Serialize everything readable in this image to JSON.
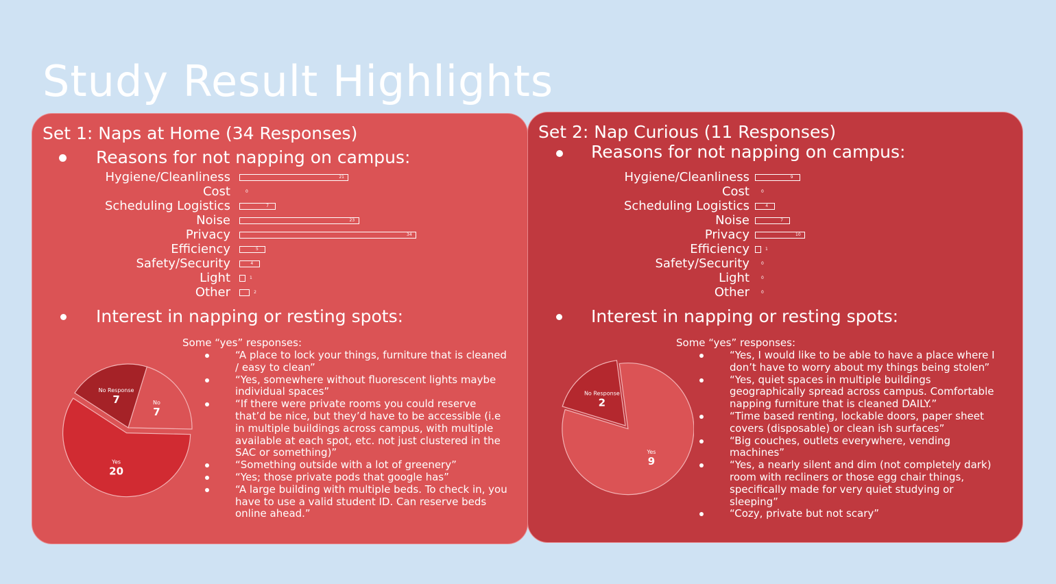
{
  "slide_title": "Study Result Highlights",
  "panels": [
    {
      "heading": "Set 1: Naps at Home (34 Responses)",
      "reasons_heading": "Reasons for not napping on campus:",
      "interest_heading": "Interest in napping or resting spots:",
      "quotes_heading": "Some “yes” responses:",
      "quotes": [
        "“A place to lock your things, furniture that is cleaned / easy to clean”",
        "“Yes, somewhere without fluorescent lights maybe individual spaces”",
        "“If there were private rooms you could reserve that’d be nice, but they’d have to be accessible (i.e in multiple buildings across campus, with multiple available at each spot, etc. not just clustered in the SAC or something)”",
        "“Something outside with a lot of greenery”",
        "“Yes; those private pods that google has”",
        "“A large building with multiple beds. To check in, you have to use a valid student ID. Can reserve beds online ahead.”"
      ]
    },
    {
      "heading": "Set 2: Nap Curious (11 Responses)",
      "reasons_heading": "Reasons for not napping on campus:",
      "interest_heading": "Interest in napping or resting spots:",
      "quotes_heading": "Some “yes” responses:",
      "quotes": [
        "“Yes, I would like to be able to have a place where I don’t have to worry about my things being stolen”",
        "“Yes, quiet spaces in multiple buildings geographically spread across campus. Comfortable napping furniture that is cleaned DAILY.”",
        "“Time based renting, lockable doors, paper sheet covers (disposable) or clean ish surfaces”",
        "“Big couches, outlets everywhere, vending machines”",
        "“Yes, a nearly silent and dim (not completely dark) room with recliners or those egg chair things, specifically made for very quiet studying or sleeping”",
        "“Cozy, private but not scary”"
      ]
    }
  ],
  "chart_data": [
    {
      "type": "bar",
      "orientation": "horizontal",
      "categories": [
        "Hygiene/Cleanliness",
        "Cost",
        "Scheduling Logistics",
        "Noise",
        "Privacy",
        "Efficiency",
        "Safety/Security",
        "Light",
        "Other"
      ],
      "values": [
        21,
        0,
        7,
        23,
        34,
        5,
        4,
        1,
        2
      ],
      "xlim": [
        0,
        34
      ],
      "grid": false
    },
    {
      "type": "pie",
      "categories": [
        "No Response",
        "No",
        "Yes"
      ],
      "values": [
        7,
        7,
        20
      ],
      "colors": [
        "#a52227",
        "#db5355",
        "#d12b32"
      ]
    },
    {
      "type": "bar",
      "orientation": "horizontal",
      "categories": [
        "Hygiene/Cleanliness",
        "Cost",
        "Scheduling Logistics",
        "Noise",
        "Privacy",
        "Efficiency",
        "Safety/Security",
        "Light",
        "Other"
      ],
      "values": [
        9,
        0,
        4,
        7,
        10,
        1,
        0,
        0,
        0
      ],
      "xlim": [
        0,
        10
      ],
      "grid": false
    },
    {
      "type": "pie",
      "categories": [
        "No Response",
        "Yes"
      ],
      "values": [
        2,
        9
      ],
      "colors": [
        "#b4282e",
        "#db5355"
      ]
    }
  ]
}
